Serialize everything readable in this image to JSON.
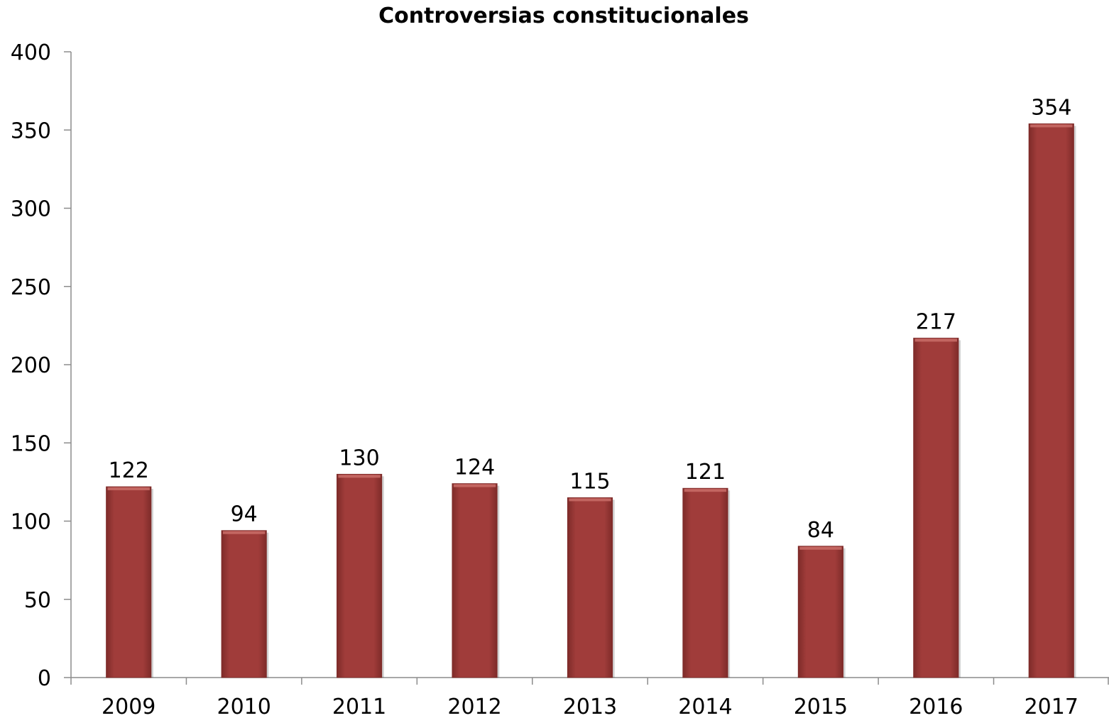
{
  "chart_data": {
    "type": "bar",
    "title": "Controversias constitucionales",
    "xlabel": "",
    "ylabel": "",
    "categories": [
      "2009",
      "2010",
      "2011",
      "2012",
      "2013",
      "2014",
      "2015",
      "2016",
      "2017"
    ],
    "values": [
      122,
      94,
      130,
      124,
      115,
      121,
      84,
      217,
      354
    ],
    "data_labels": [
      "122",
      "94",
      "130",
      "124",
      "115",
      "121",
      "84",
      "217",
      "354"
    ],
    "ylim": [
      0,
      400
    ],
    "yticks": [
      0,
      50,
      100,
      150,
      200,
      250,
      300,
      350,
      400
    ],
    "ytick_labels": [
      "0",
      "50",
      "100",
      "150",
      "200",
      "250",
      "300",
      "350",
      "400"
    ],
    "grid": false,
    "legend": "none",
    "colors": {
      "bar": "#a03c3a",
      "bar_highlight": "#c76a66",
      "bar_edge": "#7e2b29",
      "axis": "#8c8c8c"
    }
  }
}
